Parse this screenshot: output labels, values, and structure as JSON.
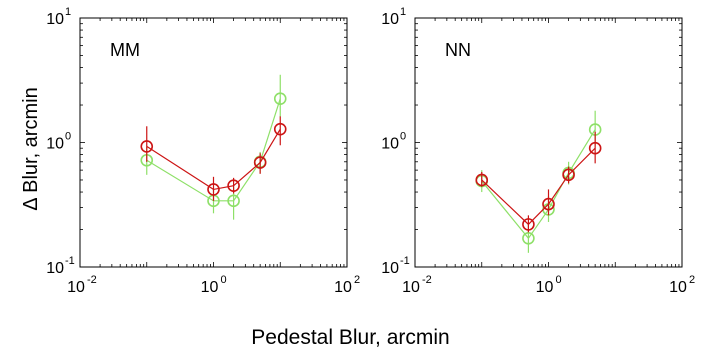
{
  "figure": {
    "xlabel": "Pedestal Blur, arcmin",
    "ylabel": "Δ Blur, arcmin"
  },
  "colors": {
    "red": "#cc1414",
    "green": "#8ee068"
  },
  "chart_data": [
    {
      "type": "scatter",
      "panel_label": "MM",
      "xscale": "log",
      "yscale": "log",
      "xlim": [
        0.01,
        100
      ],
      "ylim": [
        0.1,
        10
      ],
      "xticks": [
        {
          "base": "10",
          "exp": "-2"
        },
        {
          "base": "10",
          "exp": "0"
        },
        {
          "base": "10",
          "exp": "2"
        }
      ],
      "yticks": [
        {
          "base": "10",
          "exp": "-1"
        },
        {
          "base": "10",
          "exp": "0"
        },
        {
          "base": "10",
          "exp": "1"
        }
      ],
      "series": [
        {
          "color": "green",
          "x": [
            0.1,
            1.0,
            2.0,
            5.0,
            10.0
          ],
          "y": [
            0.72,
            0.34,
            0.34,
            0.7,
            2.25
          ],
          "err_low": [
            0.55,
            0.27,
            0.24,
            0.57,
            1.6
          ],
          "err_high": [
            0.92,
            0.42,
            0.44,
            0.84,
            3.5
          ]
        },
        {
          "color": "red",
          "x": [
            0.1,
            1.0,
            2.0,
            5.0,
            10.0
          ],
          "y": [
            0.93,
            0.42,
            0.45,
            0.69,
            1.28
          ],
          "err_low": [
            0.7,
            0.34,
            0.39,
            0.56,
            0.95
          ],
          "err_high": [
            1.35,
            0.53,
            0.52,
            0.82,
            1.62
          ]
        }
      ]
    },
    {
      "type": "scatter",
      "panel_label": "NN",
      "xscale": "log",
      "yscale": "log",
      "xlim": [
        0.01,
        100
      ],
      "ylim": [
        0.1,
        10
      ],
      "xticks": [
        {
          "base": "10",
          "exp": "-2"
        },
        {
          "base": "10",
          "exp": "0"
        },
        {
          "base": "10",
          "exp": "2"
        }
      ],
      "yticks": [
        {
          "base": "10",
          "exp": "-1"
        },
        {
          "base": "10",
          "exp": "0"
        },
        {
          "base": "10",
          "exp": "1"
        }
      ],
      "series": [
        {
          "color": "green",
          "x": [
            0.1,
            0.5,
            1.0,
            2.0,
            5.0
          ],
          "y": [
            0.49,
            0.17,
            0.29,
            0.57,
            1.27
          ],
          "err_low": [
            0.4,
            0.13,
            0.23,
            0.46,
            0.95
          ],
          "err_high": [
            0.6,
            0.22,
            0.37,
            0.7,
            1.8
          ]
        },
        {
          "color": "red",
          "x": [
            0.1,
            0.5,
            1.0,
            2.0,
            5.0
          ],
          "y": [
            0.5,
            0.22,
            0.32,
            0.55,
            0.9
          ],
          "err_low": [
            0.44,
            0.19,
            0.26,
            0.47,
            0.68
          ],
          "err_high": [
            0.58,
            0.26,
            0.42,
            0.64,
            1.22
          ]
        }
      ]
    }
  ]
}
